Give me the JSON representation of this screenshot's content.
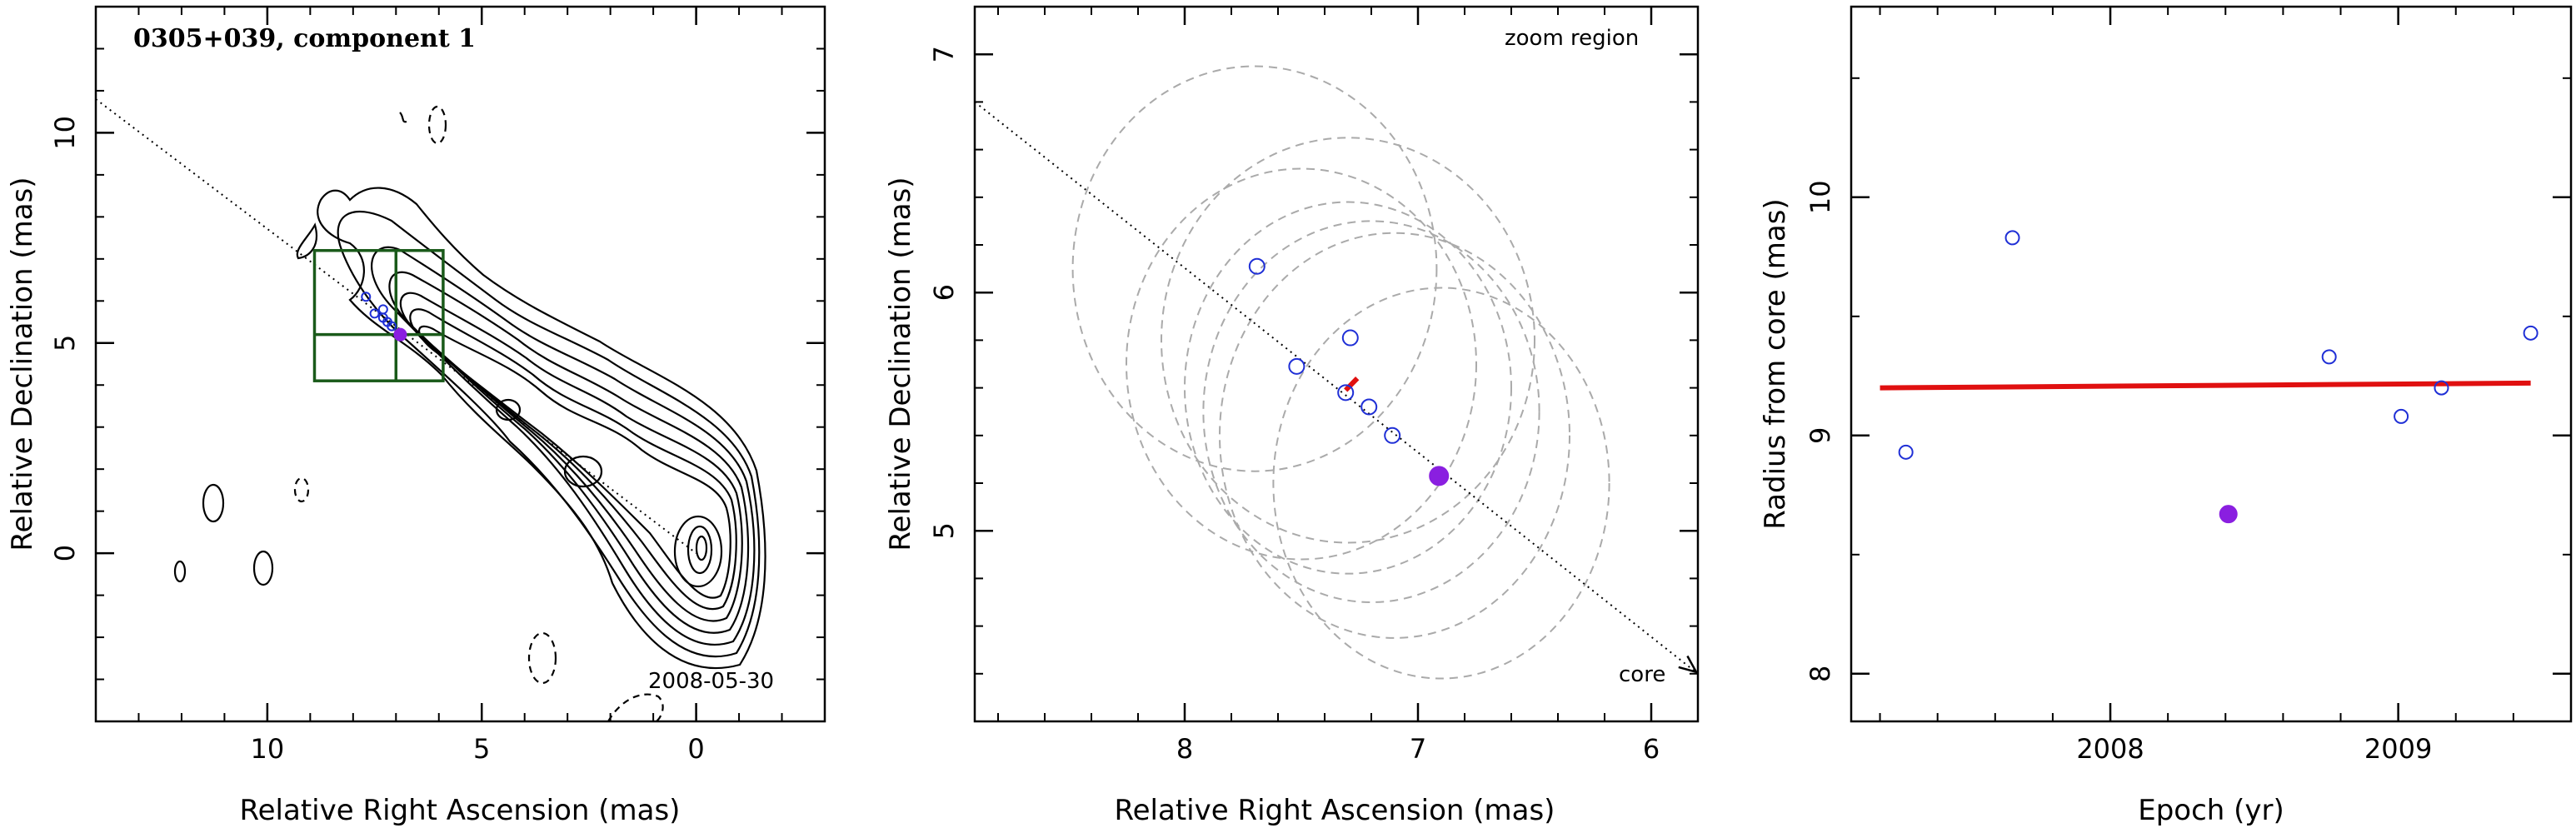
{
  "chart_data": [
    {
      "type": "scatter",
      "panel": "contour map",
      "title": "0305+039, component 1",
      "xlabel": "Relative Right Ascension (mas)",
      "ylabel": "Relative Declination (mas)",
      "xlim": [
        14,
        -3
      ],
      "ylim": [
        -4,
        13
      ],
      "xticks": [
        10,
        5,
        0
      ],
      "yticks": [
        0,
        5,
        10
      ],
      "annotation": "2008-05-30",
      "jet_axis_line": {
        "x": [
          14,
          0
        ],
        "y": [
          10.8,
          0
        ]
      },
      "zoom_box": {
        "x": [
          5.9,
          8.9
        ],
        "y": [
          4.1,
          7.2
        ]
      },
      "contour_levels_drawn": 9,
      "series": [
        {
          "marker": "open-blue-circle",
          "x": [
            7.7,
            7.5,
            7.3,
            7.3,
            7.2,
            7.1
          ],
          "y": [
            6.1,
            5.7,
            5.8,
            5.6,
            5.5,
            5.4
          ]
        },
        {
          "marker": "filled-purple-circle",
          "x": [
            6.9
          ],
          "y": [
            5.2
          ]
        }
      ]
    },
    {
      "type": "scatter",
      "panel": "zoom region",
      "xlabel": "Relative Right Ascension (mas)",
      "ylabel": "Relative Declination (mas)",
      "xlim": [
        8.9,
        5.8
      ],
      "ylim": [
        4.2,
        7.2
      ],
      "xticks": [
        8,
        7,
        6
      ],
      "yticks": [
        5,
        6,
        7
      ],
      "annotations": [
        "zoom region",
        "core"
      ],
      "direction_arrow": {
        "x": [
          8.9,
          5.8
        ],
        "y": [
          6.8,
          4.4
        ]
      },
      "series": [
        {
          "marker": "open-blue-circle",
          "x": [
            7.69,
            7.52,
            7.29,
            7.31,
            7.21,
            7.11
          ],
          "y": [
            6.11,
            5.69,
            5.81,
            5.58,
            5.52,
            5.4
          ]
        },
        {
          "marker": "filled-purple-circle",
          "x": [
            6.91
          ],
          "y": [
            5.23
          ]
        }
      ],
      "fit_segment": {
        "x": [
          7.31,
          7.26
        ],
        "y": [
          5.59,
          5.64
        ]
      },
      "beam_ellipses": [
        {
          "cx": 7.7,
          "cy": 6.1,
          "rx": 0.78,
          "ry": 0.85
        },
        {
          "cx": 7.5,
          "cy": 5.7,
          "rx": 0.75,
          "ry": 0.82
        },
        {
          "cx": 7.3,
          "cy": 5.8,
          "rx": 0.8,
          "ry": 0.85
        },
        {
          "cx": 7.3,
          "cy": 5.6,
          "rx": 0.7,
          "ry": 0.78
        },
        {
          "cx": 7.2,
          "cy": 5.5,
          "rx": 0.72,
          "ry": 0.8
        },
        {
          "cx": 7.1,
          "cy": 5.4,
          "rx": 0.75,
          "ry": 0.85
        },
        {
          "cx": 6.9,
          "cy": 5.2,
          "rx": 0.72,
          "ry": 0.82
        }
      ]
    },
    {
      "type": "scatter",
      "panel": "radius vs epoch",
      "xlabel": "Epoch (yr)",
      "ylabel": "Radius from core (mas)",
      "xlim": [
        2007.1,
        2009.6
      ],
      "ylim": [
        7.8,
        10.8
      ],
      "xticks": [
        2008,
        2009
      ],
      "yticks": [
        8,
        9,
        10
      ],
      "series": [
        {
          "marker": "open-blue-circle",
          "x": [
            2007.29,
            2007.66,
            2008.76,
            2009.01,
            2009.15,
            2009.46
          ],
          "y": [
            8.93,
            9.83,
            9.33,
            9.08,
            9.2,
            9.43
          ]
        },
        {
          "marker": "filled-purple-circle",
          "x": [
            2008.41
          ],
          "y": [
            8.67
          ]
        }
      ],
      "fit_line": {
        "x": [
          2007.2,
          2009.46
        ],
        "y": [
          9.2,
          9.22
        ]
      }
    }
  ],
  "style": {
    "open_marker_color": "#1f2fd6",
    "filled_marker_color": "#8a1fe0",
    "fit_color": "#e01010",
    "zoom_box_color": "#1a5a1a",
    "ellipse_color": "#aaaaaa"
  }
}
